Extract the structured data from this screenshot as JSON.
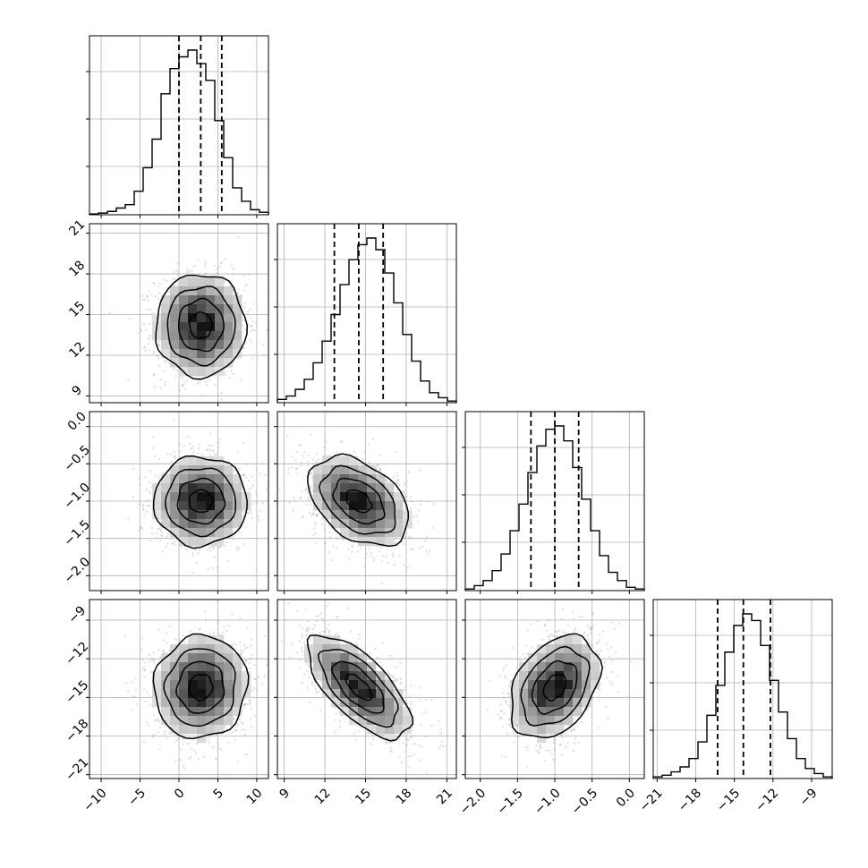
{
  "chart_data": {
    "type": "corner",
    "grid": true,
    "parameters": [
      {
        "range": [
          -11.5,
          11.5
        ],
        "quantiles": [
          0.0,
          2.8,
          5.5
        ],
        "ticks": [
          -10,
          -5,
          0,
          5,
          10
        ],
        "tick_labels": [
          "−10",
          "−5",
          "0",
          "5",
          "10"
        ]
      },
      {
        "range": [
          8.5,
          21.7
        ],
        "quantiles": [
          12.7,
          14.5,
          16.3
        ],
        "ticks": [
          9,
          12,
          15,
          18,
          21
        ],
        "tick_labels": [
          "9",
          "12",
          "15",
          "18",
          "21"
        ]
      },
      {
        "range": [
          -2.2,
          0.2
        ],
        "quantiles": [
          -1.32,
          -1.0,
          -0.68
        ],
        "ticks": [
          -2.0,
          -1.5,
          -1.0,
          -0.5,
          0.0
        ],
        "tick_labels": [
          "−2.0",
          "−1.5",
          "−1.0",
          "−0.5",
          "0.0"
        ]
      },
      {
        "range": [
          -21.3,
          -7.4
        ],
        "quantiles": [
          -16.3,
          -14.3,
          -12.2
        ],
        "ticks": [
          -21,
          -18,
          -15,
          -12,
          -9
        ],
        "tick_labels": [
          "−21",
          "−18",
          "−15",
          "−12",
          "−9"
        ]
      }
    ],
    "histograms": [
      {
        "edges_start": -11.5,
        "bin_width": 1.15,
        "counts": [
          0.005,
          0.01,
          0.02,
          0.04,
          0.06,
          0.14,
          0.28,
          0.45,
          0.72,
          0.87,
          0.94,
          0.98,
          0.9,
          0.8,
          0.56,
          0.34,
          0.16,
          0.08,
          0.03,
          0.015
        ]
      },
      {
        "edges_start": 8.5,
        "bin_width": 0.66,
        "counts": [
          0.02,
          0.04,
          0.08,
          0.14,
          0.24,
          0.37,
          0.53,
          0.71,
          0.86,
          0.95,
          0.99,
          0.92,
          0.78,
          0.6,
          0.41,
          0.25,
          0.13,
          0.06,
          0.03,
          0.01
        ]
      },
      {
        "edges_start": -2.2,
        "bin_width": 0.12,
        "counts": [
          0.01,
          0.03,
          0.06,
          0.12,
          0.22,
          0.36,
          0.52,
          0.71,
          0.87,
          0.97,
          0.99,
          0.9,
          0.74,
          0.55,
          0.36,
          0.21,
          0.11,
          0.06,
          0.02,
          0.01
        ]
      },
      {
        "edges_start": -21.3,
        "bin_width": 0.695,
        "counts": [
          0.01,
          0.02,
          0.04,
          0.07,
          0.12,
          0.22,
          0.38,
          0.56,
          0.76,
          0.92,
          0.99,
          0.95,
          0.8,
          0.59,
          0.4,
          0.24,
          0.12,
          0.06,
          0.03,
          0.01
        ]
      }
    ],
    "pairs": [
      {
        "row": 1,
        "col": 0,
        "mean": [
          2.8,
          14.2
        ],
        "sd": [
          2.9,
          1.9
        ],
        "rho": 0.0
      },
      {
        "row": 2,
        "col": 0,
        "mean": [
          2.8,
          -1.0
        ],
        "sd": [
          3.0,
          0.3
        ],
        "rho": 0.0
      },
      {
        "row": 2,
        "col": 1,
        "mean": [
          14.5,
          -1.0
        ],
        "sd": [
          1.85,
          0.3
        ],
        "rho": -0.4
      },
      {
        "row": 3,
        "col": 0,
        "mean": [
          2.8,
          -14.2
        ],
        "sd": [
          3.0,
          2.0
        ],
        "rho": 0.05
      },
      {
        "row": 3,
        "col": 1,
        "mean": [
          14.5,
          -14.2
        ],
        "sd": [
          1.9,
          2.0
        ],
        "rho": -0.68
      },
      {
        "row": 3,
        "col": 2,
        "mean": [
          -1.0,
          -14.2
        ],
        "sd": [
          0.3,
          2.0
        ],
        "rho": 0.35
      }
    ],
    "contour_levels": [
      0.5,
      1.0,
      1.5,
      2.0
    ]
  }
}
